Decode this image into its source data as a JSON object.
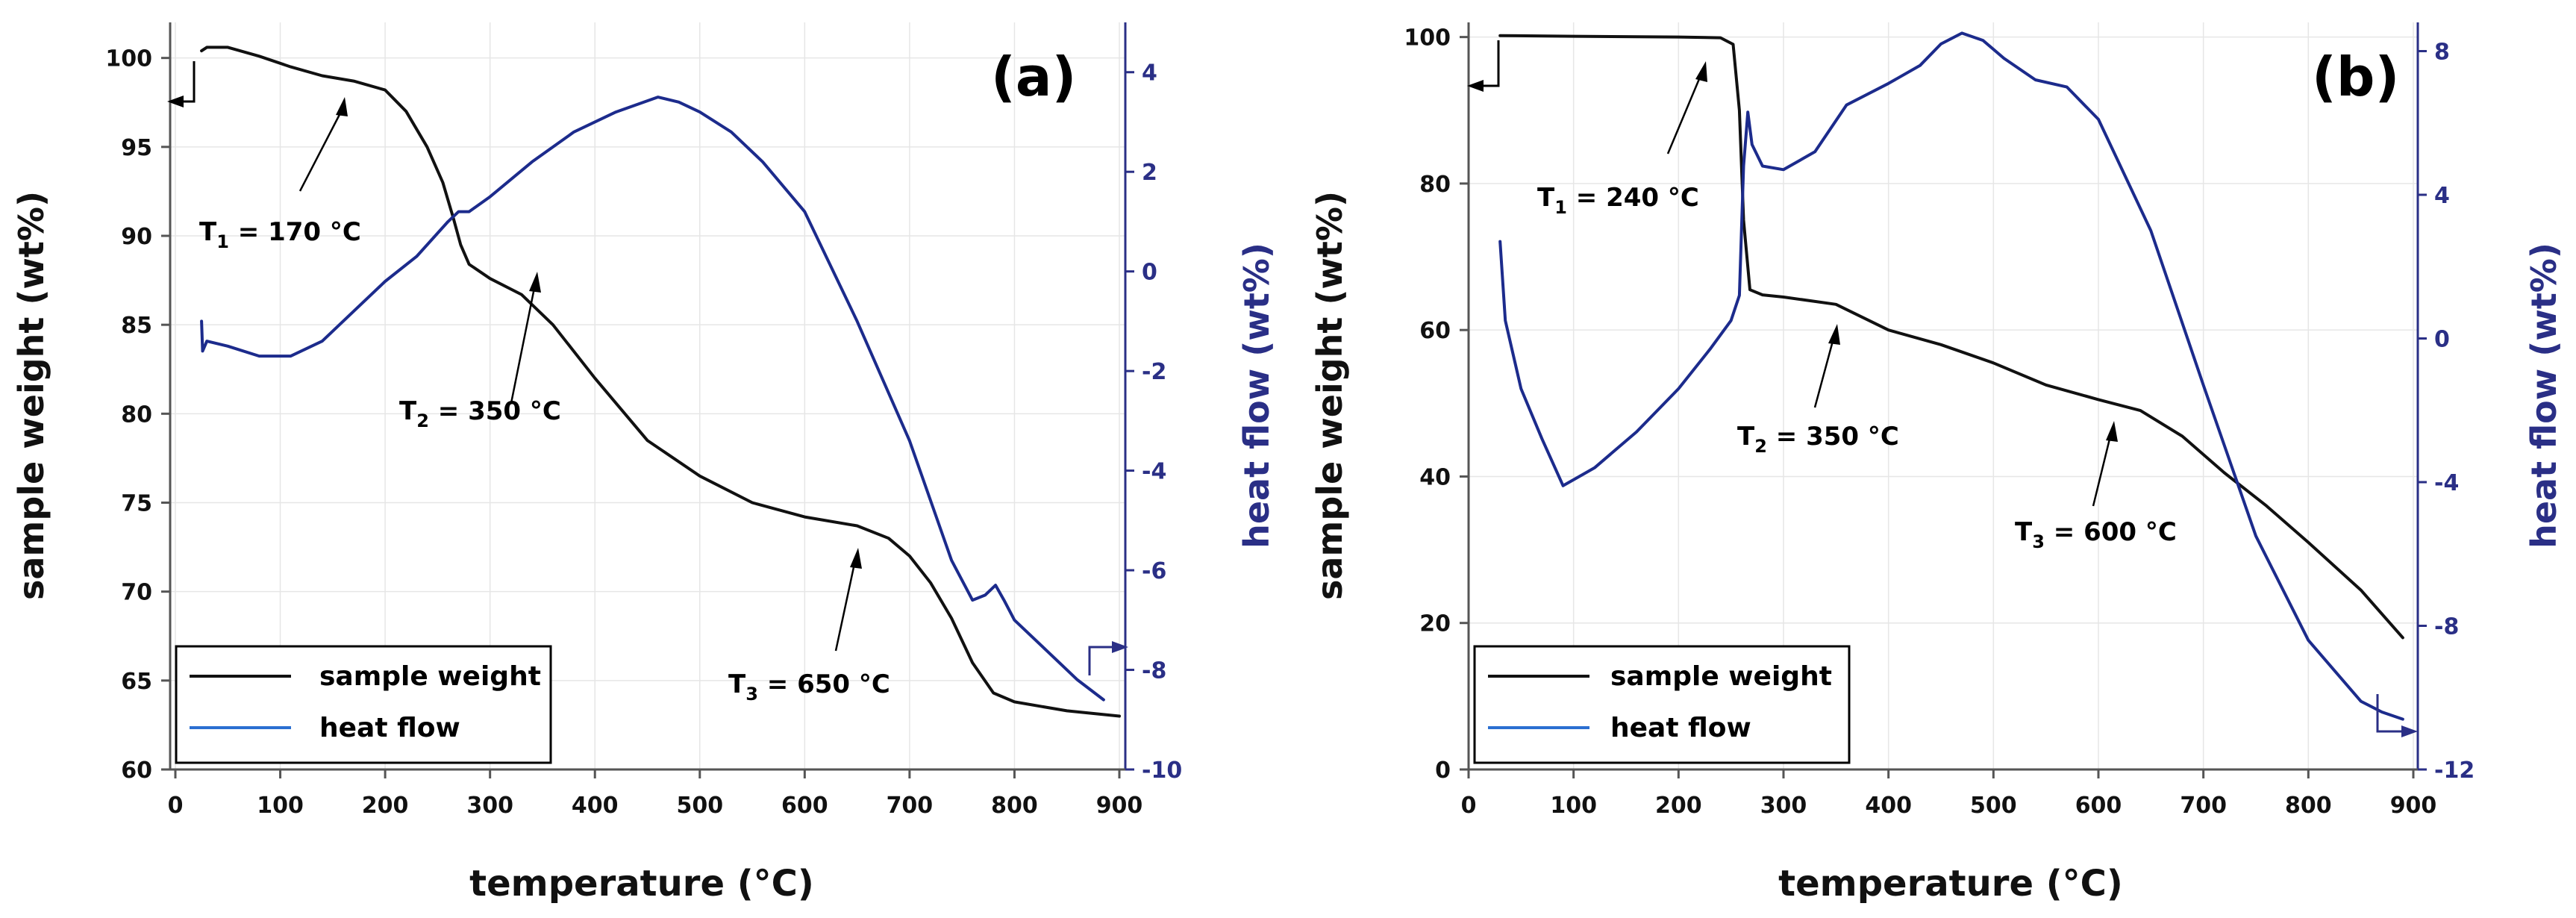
{
  "xlabel": "temperature (°C)",
  "chart_data": [
    {
      "panel": "(a)",
      "type": "line",
      "xlabel": "temperature (°C)",
      "ylabel_left": "sample weight (wt%)",
      "ylabel_right": "heat flow (wt%)",
      "xlim": [
        0,
        900
      ],
      "ylim_left": [
        60,
        102
      ],
      "ylim_right": [
        -10,
        5
      ],
      "xticks": [
        0,
        100,
        200,
        300,
        400,
        500,
        600,
        700,
        800,
        900
      ],
      "yticks_left": [
        60,
        65,
        70,
        75,
        80,
        85,
        90,
        95,
        100
      ],
      "yticks_right": [
        -10,
        -8,
        -6,
        -4,
        -2,
        0,
        2,
        4
      ],
      "series": [
        {
          "name": "sample weight",
          "axis": "left",
          "color": "#111111",
          "x": [
            25,
            30,
            50,
            80,
            110,
            140,
            170,
            200,
            220,
            240,
            255,
            265,
            272,
            280,
            300,
            330,
            360,
            400,
            450,
            500,
            550,
            600,
            650,
            680,
            700,
            720,
            740,
            760,
            780,
            800,
            850,
            900
          ],
          "y": [
            100.4,
            100.6,
            100.6,
            100.1,
            99.5,
            99.0,
            98.7,
            98.2,
            97.0,
            95.0,
            93.0,
            91.0,
            89.5,
            88.4,
            87.6,
            86.7,
            85.0,
            82.0,
            78.5,
            76.5,
            75.0,
            74.2,
            73.7,
            73.0,
            72.0,
            70.5,
            68.5,
            66.0,
            64.3,
            63.8,
            63.3,
            63.0
          ]
        },
        {
          "name": "heat flow",
          "axis": "right",
          "color": "#1c2b8c",
          "x": [
            25,
            26,
            30,
            50,
            80,
            110,
            140,
            170,
            200,
            230,
            260,
            270,
            280,
            300,
            340,
            380,
            420,
            460,
            480,
            500,
            530,
            560,
            600,
            650,
            700,
            740,
            760,
            772,
            782,
            790,
            800,
            830,
            860,
            885
          ],
          "y": [
            -1.0,
            -1.6,
            -1.4,
            -1.5,
            -1.7,
            -1.7,
            -1.4,
            -0.8,
            -0.2,
            0.3,
            1.0,
            1.2,
            1.2,
            1.5,
            2.2,
            2.8,
            3.2,
            3.5,
            3.4,
            3.2,
            2.8,
            2.2,
            1.2,
            -1.0,
            -3.4,
            -5.8,
            -6.6,
            -6.5,
            -6.3,
            -6.6,
            -7.0,
            -7.6,
            -8.2,
            -8.6
          ]
        }
      ],
      "annotations": [
        {
          "main": "T",
          "sub": "1",
          "rest": " = 170 °C"
        },
        {
          "main": "T",
          "sub": "2",
          "rest": " = 350 °C"
        },
        {
          "main": "T",
          "sub": "3",
          "rest": " = 650 °C"
        }
      ],
      "legend": [
        "sample weight",
        "heat flow"
      ],
      "legend_position": "bottom-left"
    },
    {
      "panel": "(b)",
      "type": "line",
      "xlabel": "temperature (°C)",
      "ylabel_left": "sample weight (wt%)",
      "ylabel_right": "heat flow (wt%)",
      "xlim": [
        0,
        900
      ],
      "ylim_left": [
        0,
        102
      ],
      "ylim_right": [
        -12,
        8.8
      ],
      "xticks": [
        0,
        100,
        200,
        300,
        400,
        500,
        600,
        700,
        800,
        900
      ],
      "yticks_left": [
        0,
        20,
        40,
        60,
        80,
        100
      ],
      "yticks_right": [
        -12,
        -8,
        -4,
        0,
        4,
        8
      ],
      "series": [
        {
          "name": "sample weight",
          "axis": "left",
          "color": "#111111",
          "x": [
            30,
            100,
            200,
            240,
            252,
            258,
            262,
            268,
            280,
            300,
            350,
            400,
            450,
            500,
            550,
            600,
            640,
            680,
            720,
            760,
            800,
            850,
            890
          ],
          "y": [
            100.2,
            100.1,
            100.0,
            99.9,
            99.0,
            90.0,
            75.0,
            65.5,
            64.8,
            64.5,
            63.5,
            60.0,
            58.0,
            55.5,
            52.5,
            50.5,
            49.0,
            45.5,
            40.5,
            36.0,
            31.0,
            24.5,
            18.0
          ]
        },
        {
          "name": "heat flow",
          "axis": "right",
          "color": "#1c2b8c",
          "x": [
            30,
            35,
            50,
            70,
            90,
            120,
            160,
            200,
            230,
            250,
            258,
            262,
            266,
            270,
            280,
            300,
            330,
            360,
            400,
            430,
            450,
            470,
            490,
            510,
            540,
            570,
            600,
            650,
            700,
            750,
            800,
            850,
            870,
            890
          ],
          "y": [
            2.7,
            0.5,
            -1.4,
            -2.8,
            -4.1,
            -3.6,
            -2.6,
            -1.4,
            -0.3,
            0.5,
            1.2,
            4.8,
            6.3,
            5.4,
            4.8,
            4.7,
            5.2,
            6.5,
            7.1,
            7.6,
            8.2,
            8.5,
            8.3,
            7.8,
            7.2,
            7.0,
            6.1,
            3.0,
            -1.3,
            -5.5,
            -8.4,
            -10.1,
            -10.4,
            -10.6
          ]
        }
      ],
      "annotations": [
        {
          "main": "T",
          "sub": "1",
          "rest": " = 240 °C"
        },
        {
          "main": "T",
          "sub": "2",
          "rest": " = 350 °C"
        },
        {
          "main": "T",
          "sub": "3",
          "rest": " = 600 °C"
        }
      ],
      "legend": [
        "sample weight",
        "heat flow"
      ],
      "legend_position": "bottom-left"
    }
  ],
  "colors": {
    "weight": "#111111",
    "heat": "#1c2b8c",
    "rightAxis": "#2a2f86",
    "legendHeat": "#2b6fd1"
  }
}
